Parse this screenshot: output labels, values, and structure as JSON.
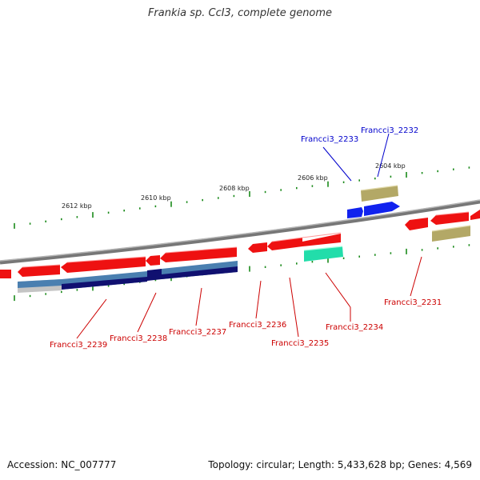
{
  "title": "Frankia sp. CcI3, complete genome",
  "footer": {
    "accession": "Accession: NC_007777",
    "summary": "Topology: circular; Length: 5,433,628 bp; Genes: 4,569"
  },
  "kbp_labels": [
    "2612 kbp",
    "2610 kbp",
    "2608 kbp",
    "2606 kbp",
    "2604 kbp"
  ],
  "gene_labels": [
    {
      "text": "Francci3_2233",
      "color": "#0000cc"
    },
    {
      "text": "Francci3_2232",
      "color": "#0000cc"
    },
    {
      "text": "Francci3_2231",
      "color": "#cc0000"
    },
    {
      "text": "Francci3_2234",
      "color": "#cc0000"
    },
    {
      "text": "Francci3_2235",
      "color": "#cc0000"
    },
    {
      "text": "Francci3_2236",
      "color": "#cc0000"
    },
    {
      "text": "Francci3_2237",
      "color": "#cc0000"
    },
    {
      "text": "Francci3_2238",
      "color": "#cc0000"
    },
    {
      "text": "Francci3_2239",
      "color": "#cc0000"
    }
  ],
  "colors": {
    "gene_red": "#ee1111",
    "gene_blue": "#1122ee",
    "khaki": "#b3a866",
    "navy": "#101070",
    "steel_blue": "#4a7fb0",
    "seafoam": "#22ddaa",
    "tick_green": "#1a8a1a",
    "backbone": "#888888"
  }
}
